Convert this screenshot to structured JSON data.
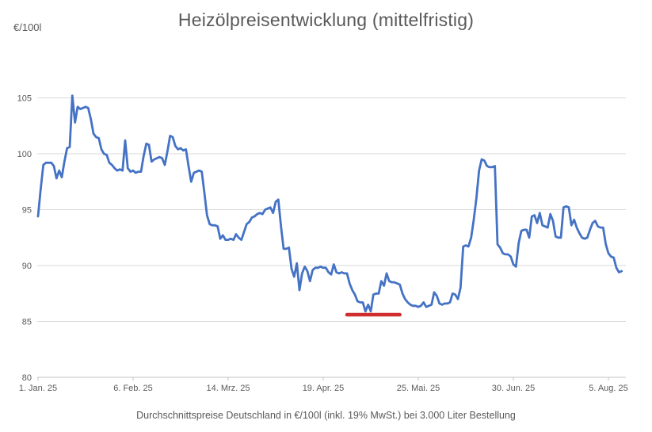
{
  "title": "Heizölpreisentwicklung (mittelfristig)",
  "y_axis_unit": "€/100l",
  "footer": "Durchschnittspreise Deutschland in €/100l (inkl. 19% MwSt.) bei 3.000 Liter Bestellung",
  "chart_data": {
    "type": "line",
    "title": "Heizölpreisentwicklung (mittelfristig)",
    "xlabel": "",
    "ylabel": "€/100l",
    "ylim": [
      80,
      105
    ],
    "grid": true,
    "legend": false,
    "y_ticks": [
      80,
      85,
      90,
      95,
      100,
      105
    ],
    "x_tick_labels": [
      "1. Jan. 25",
      "6. Feb. 25",
      "14. Mrz. 25",
      "19. Apr. 25",
      "25. Mai. 25",
      "30. Jun. 25",
      "5. Aug. 25"
    ],
    "x_tick_days": [
      0,
      36,
      72,
      108,
      144,
      180,
      216
    ],
    "start_date": "2025-01-01",
    "end_date": "2025-08-10",
    "frequency": "daily",
    "colors": {
      "line": "#4472c4",
      "marker": "#d02e2e",
      "grid": "#d9d9d9",
      "axis": "#c3c3c3",
      "text": "#595959"
    },
    "series": [
      {
        "name": "Durchschnittspreis Heizöl Deutschland (€/100l)",
        "color": "#4472c4",
        "values": [
          94.4,
          96.8,
          99.0,
          99.2,
          99.2,
          99.2,
          98.9,
          97.8,
          98.5,
          97.9,
          99.3,
          100.5,
          100.6,
          105.2,
          102.8,
          104.2,
          104.0,
          104.1,
          104.2,
          104.1,
          103.1,
          101.8,
          101.5,
          101.4,
          100.4,
          100.0,
          99.9,
          99.2,
          99.0,
          98.7,
          98.5,
          98.6,
          98.5,
          101.2,
          98.7,
          98.4,
          98.5,
          98.3,
          98.4,
          98.4,
          99.8,
          100.9,
          100.8,
          99.3,
          99.5,
          99.6,
          99.7,
          99.6,
          99.0,
          100.2,
          101.6,
          101.5,
          100.7,
          100.4,
          100.5,
          100.3,
          100.4,
          98.9,
          97.5,
          98.3,
          98.4,
          98.5,
          98.4,
          96.5,
          94.5,
          93.7,
          93.6,
          93.6,
          93.5,
          92.4,
          92.7,
          92.3,
          92.3,
          92.4,
          92.3,
          92.8,
          92.5,
          92.3,
          93.0,
          93.7,
          93.9,
          94.3,
          94.4,
          94.6,
          94.7,
          94.6,
          95.0,
          95.1,
          95.2,
          94.7,
          95.7,
          95.9,
          93.5,
          91.5,
          91.5,
          91.6,
          89.7,
          89.0,
          90.2,
          87.8,
          89.3,
          89.9,
          89.5,
          88.6,
          89.6,
          89.8,
          89.8,
          89.9,
          89.8,
          89.8,
          89.4,
          89.2,
          90.1,
          89.4,
          89.3,
          89.4,
          89.3,
          89.3,
          88.4,
          87.8,
          87.4,
          86.8,
          86.7,
          86.7,
          85.9,
          86.5,
          85.9,
          87.4,
          87.5,
          87.5,
          88.6,
          88.2,
          89.3,
          88.6,
          88.5,
          88.5,
          88.4,
          88.3,
          87.5,
          87.0,
          86.7,
          86.5,
          86.4,
          86.4,
          86.3,
          86.4,
          86.7,
          86.3,
          86.4,
          86.5,
          87.6,
          87.3,
          86.6,
          86.5,
          86.6,
          86.6,
          86.7,
          87.5,
          87.4,
          87.0,
          88.0,
          91.7,
          91.8,
          91.7,
          92.5,
          94.1,
          96.0,
          98.5,
          99.5,
          99.4,
          98.9,
          98.8,
          98.8,
          98.9,
          91.9,
          91.6,
          91.1,
          91.0,
          91.0,
          90.8,
          90.1,
          89.9,
          92.0,
          93.1,
          93.2,
          93.2,
          92.5,
          94.4,
          94.5,
          93.8,
          94.7,
          93.6,
          93.5,
          93.4,
          94.6,
          94.0,
          92.6,
          92.5,
          92.5,
          95.2,
          95.3,
          95.2,
          93.6,
          94.1,
          93.4,
          92.9,
          92.5,
          92.4,
          92.5,
          93.2,
          93.8,
          94.0,
          93.5,
          93.4,
          93.4,
          91.9,
          91.1,
          90.8,
          90.7,
          89.8,
          89.4,
          89.5
        ]
      }
    ],
    "annotation": {
      "type": "horizontal-line-segment",
      "name": "lowest-price-marker",
      "y": 85.6,
      "start_day": 117,
      "end_day": 137,
      "start_date": "2025-04-28",
      "end_date": "2025-05-18",
      "color": "#d02e2e"
    }
  }
}
